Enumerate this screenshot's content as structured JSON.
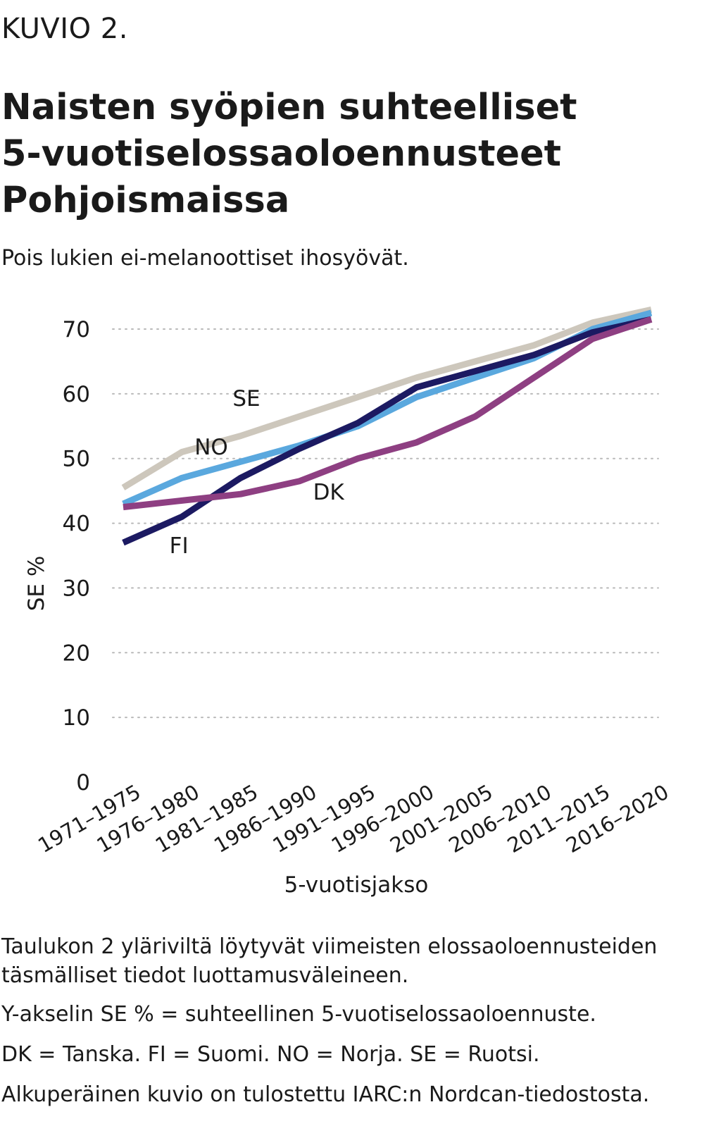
{
  "header": {
    "label": "KUVIO 2.",
    "title_lines": [
      "Naisten syöpien suhteelliset",
      "5-vuotiselossaoloennusteet",
      "Pohjoismaissa"
    ],
    "subtitle": "Pois lukien ei-melanoottiset ihosyövät."
  },
  "chart_data": {
    "type": "line",
    "title": "Naisten syöpien suhteelliset 5-vuotiselossaoloennusteet Pohjoismaissa",
    "subtitle": "Pois lukien ei-melanoottiset ihosyövät.",
    "xlabel": "5-vuotisjakso",
    "ylabel": "SE %",
    "ylim": [
      0,
      70
    ],
    "yticks": [
      0,
      10,
      20,
      30,
      40,
      50,
      60,
      70
    ],
    "grid": "horizontal dotted",
    "legend": "inline labels",
    "categories": [
      "1971–1975",
      "1976–1980",
      "1981–1985",
      "1986–1990",
      "1991–1995",
      "1996–2000",
      "2001–2005",
      "2006–2010",
      "2011–2015",
      "2016–2020"
    ],
    "series": [
      {
        "name": "SE",
        "color": "#cdc7bc",
        "values": [
          45.5,
          51,
          53.5,
          56.5,
          59.5,
          62.5,
          65,
          67.5,
          71,
          73
        ]
      },
      {
        "name": "NO",
        "color": "#5aa8de",
        "values": [
          43,
          47,
          49.5,
          52,
          55,
          59.5,
          62.5,
          65.5,
          70,
          72.5
        ]
      },
      {
        "name": "FI",
        "color": "#1c1a62",
        "values": [
          37,
          41,
          47,
          51.5,
          55.5,
          61,
          63.5,
          66,
          69.5,
          71.5
        ]
      },
      {
        "name": "DK",
        "color": "#8e3f82",
        "values": [
          42.5,
          43.5,
          44.5,
          46.5,
          50,
          52.5,
          56.5,
          62.5,
          68.5,
          71.5
        ]
      }
    ],
    "series_label_positions": {
      "SE": 2.1,
      "NO": 1.5,
      "DK": 3.5,
      "FI": 0.95
    }
  },
  "notes": [
    "Taulukon 2 yläriviltä löytyvät viimeisten elossaoloennusteiden täsmälliset tiedot luottamusväleineen.",
    "Y-akselin SE % = suhteellinen 5-vuotiselossaoloennuste.",
    "DK = Tanska. FI = Suomi. NO = Norja. SE = Ruotsi.",
    "Alkuperäinen kuvio on tulostettu IARC:n Nordcan-tiedostosta."
  ]
}
